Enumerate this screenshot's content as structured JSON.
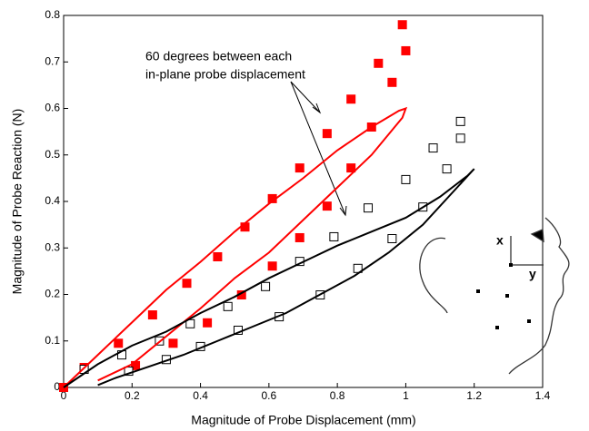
{
  "chart_data": {
    "type": "scatter",
    "xlabel": "Magnitude of Probe Displacement (mm)",
    "ylabel": "Magnitude of Probe Reaction (N)",
    "annotation": [
      "60 degrees between each",
      "in-plane probe displacement"
    ],
    "inset_labels": [
      "x",
      "y"
    ],
    "xlim": [
      0,
      1.4
    ],
    "ylim": [
      0,
      0.8
    ],
    "xticks": [
      0,
      0.2,
      0.4,
      0.6,
      0.8,
      1,
      1.2,
      1.4
    ],
    "yticks": [
      0,
      0.1,
      0.2,
      0.3,
      0.4,
      0.5,
      0.6,
      0.7,
      0.8
    ],
    "series": [
      {
        "marker": "filled-square",
        "color": "#ff0000",
        "x": [
          0,
          0.06,
          0.16,
          0.21,
          0.26,
          0.32,
          0.36,
          0.42,
          0.45,
          0.52,
          0.53,
          0.61,
          0.61,
          0.69,
          0.69,
          0.77,
          0.77,
          0.84,
          0.84,
          0.9,
          0.92,
          0.96,
          0.99,
          1.0
        ],
        "values": [
          0,
          0.043,
          0.095,
          0.047,
          0.156,
          0.095,
          0.224,
          0.139,
          0.281,
          0.199,
          0.345,
          0.261,
          0.406,
          0.322,
          0.472,
          0.39,
          0.546,
          0.472,
          0.62,
          0.56,
          0.697,
          0.656,
          0.78,
          0.724
        ]
      },
      {
        "marker": "open-square",
        "color": "#000000",
        "x": [
          0.06,
          0.17,
          0.19,
          0.28,
          0.3,
          0.37,
          0.4,
          0.48,
          0.51,
          0.59,
          0.63,
          0.69,
          0.75,
          0.79,
          0.86,
          0.89,
          0.96,
          1.0,
          1.05,
          1.08,
          1.12,
          1.16,
          1.16
        ],
        "values": [
          0.039,
          0.07,
          0.035,
          0.1,
          0.06,
          0.137,
          0.088,
          0.174,
          0.123,
          0.217,
          0.152,
          0.271,
          0.199,
          0.324,
          0.256,
          0.386,
          0.32,
          0.447,
          0.388,
          0.515,
          0.47,
          0.536,
          0.572
        ]
      },
      {
        "marker": "line",
        "color": "#ff0000",
        "x": [
          0,
          0.1,
          0.2,
          0.3,
          0.4,
          0.5,
          0.6,
          0.7,
          0.8,
          0.9,
          0.98,
          1.0,
          0.99,
          0.9,
          0.8,
          0.7,
          0.6,
          0.5,
          0.4,
          0.3,
          0.2,
          0.1
        ],
        "values": [
          0,
          0.07,
          0.14,
          0.21,
          0.27,
          0.335,
          0.395,
          0.45,
          0.51,
          0.56,
          0.595,
          0.6,
          0.58,
          0.5,
          0.43,
          0.36,
          0.29,
          0.235,
          0.17,
          0.11,
          0.05,
          0.015
        ]
      },
      {
        "marker": "line",
        "color": "#000000",
        "x": [
          0,
          0.1,
          0.2,
          0.3,
          0.4,
          0.5,
          0.6,
          0.7,
          0.8,
          0.9,
          1.0,
          1.1,
          1.18,
          1.2,
          1.15,
          1.05,
          0.95,
          0.85,
          0.75,
          0.65,
          0.55,
          0.45,
          0.35,
          0.25,
          0.15,
          0.1
        ],
        "values": [
          0,
          0.05,
          0.09,
          0.12,
          0.16,
          0.195,
          0.235,
          0.27,
          0.305,
          0.335,
          0.365,
          0.41,
          0.455,
          0.47,
          0.43,
          0.35,
          0.29,
          0.24,
          0.2,
          0.16,
          0.13,
          0.1,
          0.07,
          0.045,
          0.02,
          0.005
        ]
      }
    ]
  }
}
